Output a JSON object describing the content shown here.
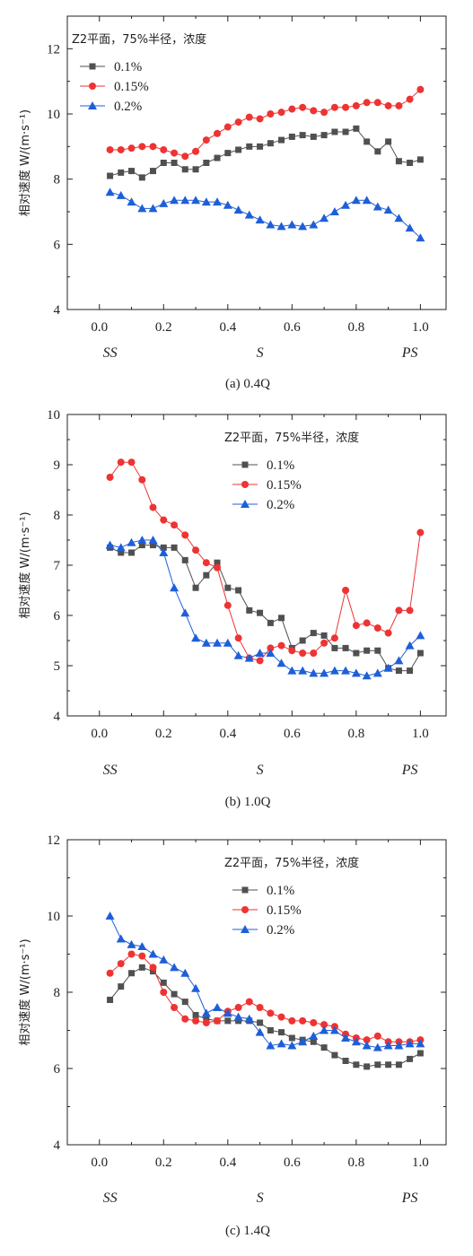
{
  "chart_data": [
    {
      "type": "line",
      "caption": "(a) 0.4Q",
      "legend_title": "Z2平面，75%半径，浓度",
      "ylabel": "相对速度 W/(m·s⁻¹)",
      "xlim": [
        -0.1,
        1.08
      ],
      "ylim": [
        4,
        13
      ],
      "xticks": [
        "0.0",
        "0.2",
        "0.4",
        "0.6",
        "0.8",
        "1.0"
      ],
      "yticks": [
        "4",
        "6",
        "8",
        "10",
        "12"
      ],
      "position_labels": [
        "SS",
        "S",
        "PS"
      ],
      "legend_position": "top-left",
      "x": [
        0.033,
        0.067,
        0.1,
        0.133,
        0.167,
        0.2,
        0.233,
        0.267,
        0.3,
        0.333,
        0.367,
        0.4,
        0.433,
        0.467,
        0.5,
        0.533,
        0.567,
        0.6,
        0.633,
        0.667,
        0.7,
        0.733,
        0.767,
        0.8,
        0.833,
        0.867,
        0.9,
        0.933,
        0.967,
        1.0
      ],
      "series": [
        {
          "name": "0.1%",
          "color": "#505050",
          "marker": "square",
          "values": [
            8.1,
            8.2,
            8.25,
            8.05,
            8.25,
            8.5,
            8.5,
            8.3,
            8.3,
            8.5,
            8.65,
            8.8,
            8.9,
            9.0,
            9.0,
            9.1,
            9.2,
            9.3,
            9.35,
            9.3,
            9.35,
            9.45,
            9.45,
            9.55,
            9.15,
            8.85,
            9.15,
            8.55,
            8.5,
            8.6
          ]
        },
        {
          "name": "0.15%",
          "color": "#ee3333",
          "marker": "circle",
          "values": [
            8.9,
            8.9,
            8.95,
            9.0,
            9.0,
            8.9,
            8.8,
            8.7,
            8.85,
            9.2,
            9.4,
            9.6,
            9.75,
            9.9,
            9.85,
            10.0,
            10.05,
            10.15,
            10.2,
            10.1,
            10.05,
            10.2,
            10.2,
            10.25,
            10.35,
            10.35,
            10.25,
            10.25,
            10.45,
            10.75
          ]
        },
        {
          "name": "0.2%",
          "color": "#1e5fd8",
          "marker": "triangle",
          "values": [
            7.6,
            7.5,
            7.3,
            7.1,
            7.1,
            7.25,
            7.35,
            7.35,
            7.35,
            7.3,
            7.3,
            7.2,
            7.05,
            6.9,
            6.75,
            6.6,
            6.55,
            6.6,
            6.55,
            6.6,
            6.8,
            7.0,
            7.2,
            7.35,
            7.35,
            7.15,
            7.05,
            6.8,
            6.5,
            6.2
          ]
        }
      ]
    },
    {
      "type": "line",
      "caption": "(b) 1.0Q",
      "legend_title": "Z2平面，75%半径，浓度",
      "ylabel": "相对速度 W/(m·s⁻¹)",
      "xlim": [
        -0.1,
        1.08
      ],
      "ylim": [
        4,
        10
      ],
      "xticks": [
        "0.0",
        "0.2",
        "0.4",
        "0.6",
        "0.8",
        "1.0"
      ],
      "yticks": [
        "4",
        "5",
        "6",
        "7",
        "8",
        "9",
        "10"
      ],
      "position_labels": [
        "SS",
        "S",
        "PS"
      ],
      "legend_position": "top-right",
      "x": [
        0.033,
        0.067,
        0.1,
        0.133,
        0.167,
        0.2,
        0.233,
        0.267,
        0.3,
        0.333,
        0.367,
        0.4,
        0.433,
        0.467,
        0.5,
        0.533,
        0.567,
        0.6,
        0.633,
        0.667,
        0.7,
        0.733,
        0.767,
        0.8,
        0.833,
        0.867,
        0.9,
        0.933,
        0.967,
        1.0
      ],
      "series": [
        {
          "name": "0.1%",
          "color": "#505050",
          "marker": "square",
          "values": [
            7.35,
            7.25,
            7.25,
            7.4,
            7.4,
            7.35,
            7.35,
            7.1,
            6.55,
            6.8,
            7.05,
            6.55,
            6.5,
            6.1,
            6.05,
            5.85,
            5.95,
            5.35,
            5.5,
            5.65,
            5.6,
            5.35,
            5.35,
            5.25,
            5.3,
            5.3,
            4.95,
            4.9,
            4.9,
            5.25
          ]
        },
        {
          "name": "0.15%",
          "color": "#ee3333",
          "marker": "circle",
          "values": [
            8.75,
            9.05,
            9.05,
            8.7,
            8.15,
            7.9,
            7.8,
            7.6,
            7.3,
            7.05,
            6.95,
            6.2,
            5.55,
            5.15,
            5.1,
            5.35,
            5.4,
            5.3,
            5.25,
            5.25,
            5.45,
            5.55,
            6.5,
            5.8,
            5.85,
            5.75,
            5.65,
            6.1,
            6.1,
            7.65
          ]
        },
        {
          "name": "0.2%",
          "color": "#1e5fd8",
          "marker": "triangle",
          "values": [
            7.4,
            7.35,
            7.45,
            7.5,
            7.5,
            7.25,
            6.55,
            6.05,
            5.55,
            5.45,
            5.45,
            5.45,
            5.2,
            5.15,
            5.25,
            5.25,
            5.05,
            4.9,
            4.9,
            4.85,
            4.85,
            4.9,
            4.9,
            4.85,
            4.8,
            4.85,
            4.95,
            5.1,
            5.4,
            5.6
          ]
        }
      ]
    },
    {
      "type": "line",
      "caption": "(c) 1.4Q",
      "legend_title": "Z2平面，75%半径，浓度",
      "ylabel": "相对速度 W/(m·s⁻¹)",
      "xlim": [
        -0.1,
        1.08
      ],
      "ylim": [
        4,
        12
      ],
      "xticks": [
        "0.0",
        "0.2",
        "0.4",
        "0.6",
        "0.8",
        "1.0"
      ],
      "yticks": [
        "4",
        "6",
        "8",
        "10",
        "12"
      ],
      "position_labels": [
        "SS",
        "S",
        "PS"
      ],
      "legend_position": "top-right",
      "x": [
        0.033,
        0.067,
        0.1,
        0.133,
        0.167,
        0.2,
        0.233,
        0.267,
        0.3,
        0.333,
        0.367,
        0.4,
        0.433,
        0.467,
        0.5,
        0.533,
        0.567,
        0.6,
        0.633,
        0.667,
        0.7,
        0.733,
        0.767,
        0.8,
        0.833,
        0.867,
        0.9,
        0.933,
        0.967,
        1.0
      ],
      "series": [
        {
          "name": "0.1%",
          "color": "#505050",
          "marker": "square",
          "values": [
            7.8,
            8.15,
            8.5,
            8.65,
            8.55,
            8.25,
            7.95,
            7.75,
            7.4,
            7.3,
            7.25,
            7.25,
            7.25,
            7.25,
            7.2,
            7.0,
            6.95,
            6.8,
            6.75,
            6.7,
            6.55,
            6.35,
            6.2,
            6.1,
            6.05,
            6.1,
            6.1,
            6.1,
            6.25,
            6.4
          ]
        },
        {
          "name": "0.15%",
          "color": "#ee3333",
          "marker": "circle",
          "values": [
            8.5,
            8.75,
            9.0,
            8.95,
            8.65,
            8.0,
            7.6,
            7.3,
            7.25,
            7.2,
            7.25,
            7.5,
            7.6,
            7.75,
            7.6,
            7.45,
            7.35,
            7.25,
            7.25,
            7.2,
            7.15,
            7.1,
            6.9,
            6.8,
            6.75,
            6.85,
            6.7,
            6.7,
            6.7,
            6.75
          ]
        },
        {
          "name": "0.2%",
          "color": "#1e5fd8",
          "marker": "triangle",
          "values": [
            10.0,
            9.4,
            9.25,
            9.2,
            9.0,
            8.85,
            8.65,
            8.5,
            8.1,
            7.45,
            7.6,
            7.45,
            7.35,
            7.3,
            6.95,
            6.6,
            6.65,
            6.6,
            6.7,
            6.85,
            7.0,
            7.0,
            6.8,
            6.7,
            6.6,
            6.55,
            6.6,
            6.6,
            6.65,
            6.65
          ]
        }
      ]
    }
  ]
}
